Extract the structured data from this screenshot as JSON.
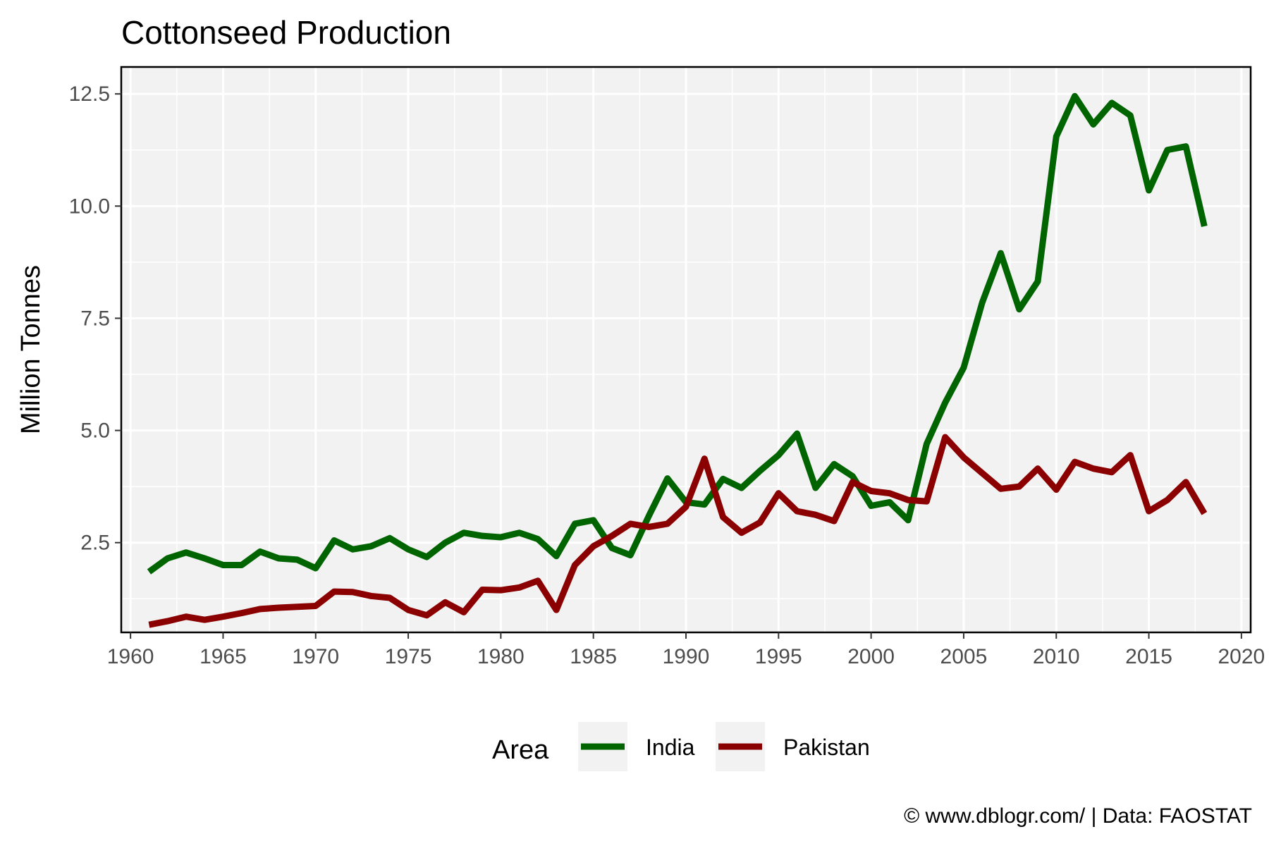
{
  "chart_data": {
    "type": "line",
    "title": "Cottonseed Production",
    "xlabel": "",
    "ylabel": "Million Tonnes",
    "xlim": [
      1959.5,
      2020.5
    ],
    "ylim": [
      0.5,
      13.1
    ],
    "x_ticks": [
      1960,
      1965,
      1970,
      1975,
      1980,
      1985,
      1990,
      1995,
      2000,
      2005,
      2010,
      2015,
      2020
    ],
    "x_tick_labels": [
      "1960",
      "1965",
      "1970",
      "1975",
      "1980",
      "1985",
      "1990",
      "1995",
      "2000",
      "2005",
      "2010",
      "2015",
      "2020"
    ],
    "y_ticks": [
      2.5,
      5.0,
      7.5,
      10.0,
      12.5
    ],
    "y_tick_labels": [
      "2.5",
      "5.0",
      "7.5",
      "10.0",
      "12.5"
    ],
    "grid": true,
    "legend_title": "Area",
    "legend_position": "bottom",
    "caption": "© www.dblogr.com/ | Data: FAOSTAT",
    "panel_color": "#f2f2f2",
    "x": [
      1961,
      1962,
      1963,
      1964,
      1965,
      1966,
      1967,
      1968,
      1969,
      1970,
      1971,
      1972,
      1973,
      1974,
      1975,
      1976,
      1977,
      1978,
      1979,
      1980,
      1981,
      1982,
      1983,
      1984,
      1985,
      1986,
      1987,
      1988,
      1989,
      1990,
      1991,
      1992,
      1993,
      1994,
      1995,
      1996,
      1997,
      1998,
      1999,
      2000,
      2001,
      2002,
      2003,
      2004,
      2005,
      2006,
      2007,
      2008,
      2009,
      2010,
      2011,
      2012,
      2013,
      2014,
      2015,
      2016,
      2017,
      2018
    ],
    "series": [
      {
        "name": "India",
        "color": "#006400",
        "values": [
          1.85,
          2.15,
          2.28,
          2.15,
          2.0,
          2.0,
          2.3,
          2.15,
          2.12,
          1.93,
          2.55,
          2.35,
          2.42,
          2.6,
          2.35,
          2.18,
          2.5,
          2.72,
          2.65,
          2.62,
          2.72,
          2.58,
          2.2,
          2.92,
          3.0,
          2.38,
          2.22,
          3.1,
          3.93,
          3.4,
          3.35,
          3.92,
          3.72,
          4.1,
          4.45,
          4.93,
          3.72,
          4.25,
          3.98,
          3.32,
          3.4,
          3.0,
          4.7,
          5.62,
          6.4,
          7.85,
          8.95,
          7.7,
          8.32,
          11.55,
          12.45,
          11.82,
          12.3,
          12.02,
          10.35,
          11.25,
          11.33,
          9.55
        ]
      },
      {
        "name": "Pakistan",
        "color": "#8b0000",
        "values": [
          0.67,
          0.75,
          0.85,
          0.78,
          0.85,
          0.93,
          1.02,
          1.05,
          1.07,
          1.09,
          1.41,
          1.4,
          1.31,
          1.27,
          1.0,
          0.88,
          1.17,
          0.95,
          1.45,
          1.44,
          1.5,
          1.65,
          1.0,
          2.0,
          2.42,
          2.65,
          2.92,
          2.85,
          2.92,
          3.3,
          4.37,
          3.07,
          2.72,
          2.95,
          3.6,
          3.2,
          3.12,
          2.98,
          3.85,
          3.65,
          3.6,
          3.45,
          3.42,
          4.85,
          4.4,
          4.05,
          3.7,
          3.75,
          4.15,
          3.68,
          4.3,
          4.15,
          4.07,
          4.45,
          3.2,
          3.45,
          3.85,
          3.15
        ]
      }
    ]
  }
}
